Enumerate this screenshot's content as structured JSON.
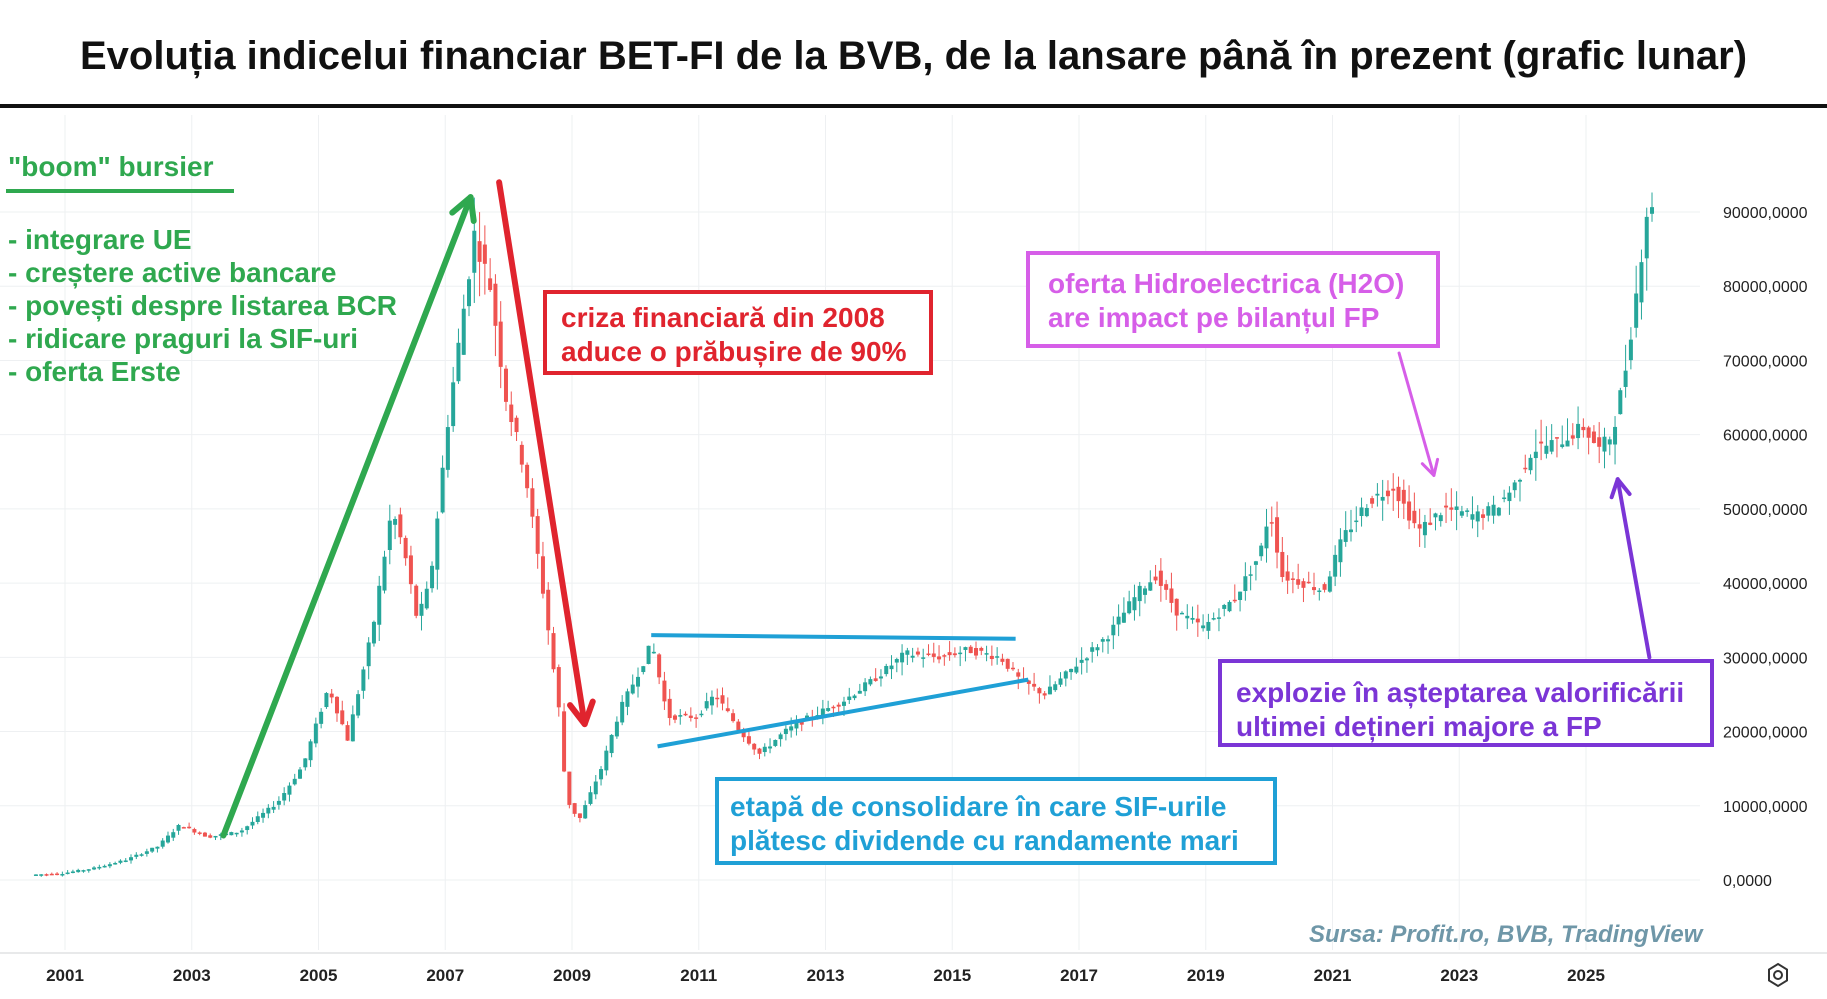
{
  "title": "Evoluția indicelui financiar BET-FI de la BVB, de la lansare până în prezent (grafic lunar)",
  "annotations": {
    "boom_title": "\"boom\" bursier",
    "boom_items": [
      "- integrare UE",
      "- creștere active bancare",
      "- povești despre listarea BCR",
      "- ridicare praguri la SIF-uri",
      "- oferta Erste"
    ],
    "crisis": [
      "criza financiară din 2008",
      "aduce o prăbușire de 90%"
    ],
    "h2o": [
      "oferta Hidroelectrica (H2O)",
      "are impact pe bilanțul FP"
    ],
    "consolidation": [
      "etapă de consolidare în care SIF-urile",
      "plătesc dividende cu randamente mari"
    ],
    "explosion": [
      "explozie în așteptarea valorificării",
      "ultimei dețineri majore a FP"
    ]
  },
  "source": "Sursa: Profit.ro, BVB, TradingView",
  "colors": {
    "up": "#26a69a",
    "down": "#ef5350",
    "boom": "#2fa84f",
    "crisis": "#e0242e",
    "h2o": "#d65ee8",
    "consolidation": "#1fa0d6",
    "explosion": "#7b35d6",
    "grid": "#eef0f2"
  },
  "icons": {
    "settings": "gear-icon"
  },
  "chart_data": {
    "type": "candlestick",
    "interval": "monthly",
    "ylim": [
      0,
      97000
    ],
    "y_ticks": [
      {
        "value": 90000,
        "label": "90000,0000"
      },
      {
        "value": 80000,
        "label": "80000,0000"
      },
      {
        "value": 70000,
        "label": "70000,0000"
      },
      {
        "value": 60000,
        "label": "60000,0000"
      },
      {
        "value": 50000,
        "label": "50000,0000"
      },
      {
        "value": 40000,
        "label": "40000,0000"
      },
      {
        "value": 30000,
        "label": "30000,0000"
      },
      {
        "value": 20000,
        "label": "20000,0000"
      },
      {
        "value": 10000,
        "label": "10000,0000"
      },
      {
        "value": 0,
        "label": "0,0000"
      }
    ],
    "x_ticks": [
      2001,
      2003,
      2005,
      2007,
      2009,
      2011,
      2013,
      2015,
      2017,
      2019,
      2021,
      2023,
      2025
    ],
    "xlim": [
      2000.3,
      2027.6
    ],
    "anchor_points": [
      [
        2000.5,
        700
      ],
      [
        2001.0,
        900
      ],
      [
        2001.5,
        1600
      ],
      [
        2002.0,
        2700
      ],
      [
        2002.5,
        4500
      ],
      [
        2002.85,
        7400
      ],
      [
        2003.3,
        5800
      ],
      [
        2003.8,
        6500
      ],
      [
        2004.4,
        10500
      ],
      [
        2004.8,
        15500
      ],
      [
        2005.2,
        26000
      ],
      [
        2005.5,
        19000
      ],
      [
        2005.9,
        34000
      ],
      [
        2006.2,
        50000
      ],
      [
        2006.4,
        44000
      ],
      [
        2006.6,
        35000
      ],
      [
        2006.8,
        40000
      ],
      [
        2007.1,
        63000
      ],
      [
        2007.5,
        87000
      ],
      [
        2007.75,
        80000
      ],
      [
        2008.0,
        65000
      ],
      [
        2008.3,
        55000
      ],
      [
        2008.6,
        38000
      ],
      [
        2008.85,
        22000
      ],
      [
        2008.95,
        11000
      ],
      [
        2009.15,
        8000
      ],
      [
        2009.5,
        15000
      ],
      [
        2009.8,
        23000
      ],
      [
        2010.15,
        29000
      ],
      [
        2010.3,
        32000
      ],
      [
        2010.55,
        22000
      ],
      [
        2011.0,
        22000
      ],
      [
        2011.3,
        25000
      ],
      [
        2011.7,
        20000
      ],
      [
        2012.0,
        17000
      ],
      [
        2012.4,
        20000
      ],
      [
        2012.8,
        22000
      ],
      [
        2013.3,
        24000
      ],
      [
        2013.8,
        27000
      ],
      [
        2014.3,
        30500
      ],
      [
        2014.8,
        30000
      ],
      [
        2015.3,
        31000
      ],
      [
        2015.8,
        30000
      ],
      [
        2016.1,
        27000
      ],
      [
        2016.5,
        25000
      ],
      [
        2017.0,
        29000
      ],
      [
        2017.5,
        33000
      ],
      [
        2018.0,
        39000
      ],
      [
        2018.25,
        41000
      ],
      [
        2018.6,
        36000
      ],
      [
        2019.0,
        34000
      ],
      [
        2019.5,
        38000
      ],
      [
        2019.9,
        44000
      ],
      [
        2020.05,
        50000
      ],
      [
        2020.25,
        41000
      ],
      [
        2020.6,
        40000
      ],
      [
        2020.9,
        39000
      ],
      [
        2021.2,
        46000
      ],
      [
        2021.6,
        51000
      ],
      [
        2022.0,
        53000
      ],
      [
        2022.4,
        47000
      ],
      [
        2022.8,
        50000
      ],
      [
        2023.3,
        49000
      ],
      [
        2023.6,
        50000
      ],
      [
        2023.9,
        53000
      ],
      [
        2024.2,
        58000
      ],
      [
        2024.6,
        59000
      ],
      [
        2025.0,
        61000
      ],
      [
        2025.25,
        58000
      ],
      [
        2025.45,
        60000
      ],
      [
        2025.65,
        68000
      ],
      [
        2025.85,
        80000
      ],
      [
        2026.0,
        90000
      ]
    ],
    "trend_lines": [
      {
        "name": "consolidation-top",
        "points": [
          [
            2010.25,
            33000
          ],
          [
            2016.0,
            32500
          ]
        ]
      },
      {
        "name": "consolidation-bottom",
        "points": [
          [
            2010.35,
            18000
          ],
          [
            2016.2,
            27000
          ]
        ]
      }
    ],
    "arrows": [
      {
        "name": "boom-arrow",
        "from": [
          2003.5,
          6000
        ],
        "to": [
          2007.4,
          92000
        ]
      },
      {
        "name": "crisis-arrow",
        "from": [
          2007.85,
          94000
        ],
        "to": [
          2009.2,
          21000
        ]
      },
      {
        "name": "h2o-arrow",
        "from": [
          2022.05,
          71000
        ],
        "to": [
          2022.6,
          54500
        ]
      },
      {
        "name": "explosion-arrow",
        "from": [
          2026.0,
          30000
        ],
        "to": [
          2025.5,
          54000
        ]
      }
    ]
  }
}
